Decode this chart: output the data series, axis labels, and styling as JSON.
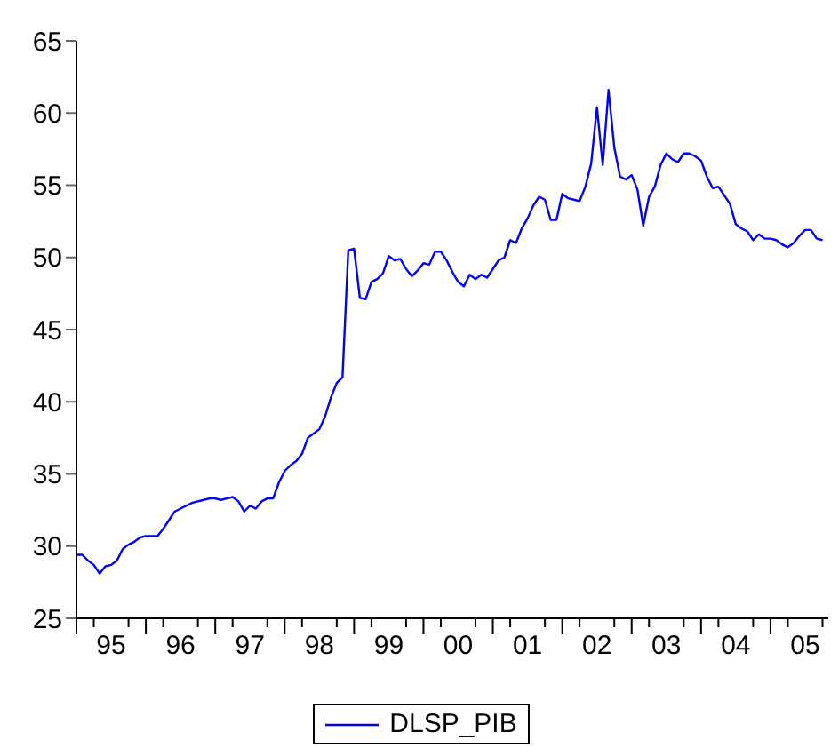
{
  "chart_data": {
    "type": "line",
    "x": [
      "1995-01",
      "1995-02",
      "1995-03",
      "1995-04",
      "1995-05",
      "1995-06",
      "1995-07",
      "1995-08",
      "1995-09",
      "1995-10",
      "1995-11",
      "1995-12",
      "1996-01",
      "1996-02",
      "1996-03",
      "1996-04",
      "1996-05",
      "1996-06",
      "1996-07",
      "1996-08",
      "1996-09",
      "1996-10",
      "1996-11",
      "1996-12",
      "1997-01",
      "1997-02",
      "1997-03",
      "1997-04",
      "1997-05",
      "1997-06",
      "1997-07",
      "1997-08",
      "1997-09",
      "1997-10",
      "1997-11",
      "1997-12",
      "1998-01",
      "1998-02",
      "1998-03",
      "1998-04",
      "1998-05",
      "1998-06",
      "1998-07",
      "1998-08",
      "1998-09",
      "1998-10",
      "1998-11",
      "1998-12",
      "1999-01",
      "1999-02",
      "1999-03",
      "1999-04",
      "1999-05",
      "1999-06",
      "1999-07",
      "1999-08",
      "1999-09",
      "1999-10",
      "1999-11",
      "1999-12",
      "2000-01",
      "2000-02",
      "2000-03",
      "2000-04",
      "2000-05",
      "2000-06",
      "2000-07",
      "2000-08",
      "2000-09",
      "2000-10",
      "2000-11",
      "2000-12",
      "2001-01",
      "2001-02",
      "2001-03",
      "2001-04",
      "2001-05",
      "2001-06",
      "2001-07",
      "2001-08",
      "2001-09",
      "2001-10",
      "2001-11",
      "2001-12",
      "2002-01",
      "2002-02",
      "2002-03",
      "2002-04",
      "2002-05",
      "2002-06",
      "2002-07",
      "2002-08",
      "2002-09",
      "2002-10",
      "2002-11",
      "2002-12",
      "2003-01",
      "2003-02",
      "2003-03",
      "2003-04",
      "2003-05",
      "2003-06",
      "2003-07",
      "2003-08",
      "2003-09",
      "2003-10",
      "2003-11",
      "2003-12",
      "2004-01",
      "2004-02",
      "2004-03",
      "2004-04",
      "2004-05",
      "2004-06",
      "2004-07",
      "2004-08",
      "2004-09",
      "2004-10",
      "2004-11",
      "2004-12",
      "2005-01",
      "2005-02",
      "2005-03",
      "2005-04",
      "2005-05",
      "2005-06",
      "2005-07",
      "2005-08",
      "2005-09",
      "2005-10"
    ],
    "series": [
      {
        "name": "DLSP_PIB",
        "color": "#0000ff",
        "values": [
          29.4,
          29.4,
          29.0,
          28.7,
          28.1,
          28.6,
          28.7,
          29.0,
          29.8,
          30.1,
          30.3,
          30.6,
          30.7,
          30.7,
          30.7,
          31.2,
          31.8,
          32.4,
          32.6,
          32.8,
          33.0,
          33.1,
          33.2,
          33.3,
          33.3,
          33.2,
          33.3,
          33.4,
          33.1,
          32.4,
          32.8,
          32.6,
          33.1,
          33.3,
          33.3,
          34.4,
          35.2,
          35.6,
          35.9,
          36.4,
          37.5,
          37.8,
          38.1,
          39.0,
          40.3,
          41.3,
          41.7,
          50.5,
          50.6,
          47.2,
          47.1,
          48.3,
          48.5,
          48.9,
          50.1,
          49.8,
          49.9,
          49.2,
          48.7,
          49.1,
          49.6,
          49.5,
          50.4,
          50.4,
          49.8,
          49.0,
          48.3,
          48.0,
          48.8,
          48.5,
          48.8,
          48.6,
          49.2,
          49.8,
          50.0,
          51.2,
          51.0,
          52.0,
          52.7,
          53.6,
          54.2,
          54.0,
          52.6,
          52.6,
          54.4,
          54.1,
          54.0,
          53.9,
          54.9,
          56.5,
          60.4,
          56.4,
          61.6,
          57.6,
          55.6,
          55.4,
          55.7,
          54.7,
          52.2,
          54.2,
          54.9,
          56.4,
          57.2,
          56.8,
          56.6,
          57.2,
          57.2,
          57.0,
          56.7,
          55.6,
          54.8,
          54.9,
          54.3,
          53.7,
          52.3,
          52.0,
          51.8,
          51.2,
          51.6,
          51.3,
          51.3,
          51.2,
          50.9,
          50.7,
          51.0,
          51.5,
          51.9,
          51.9,
          51.3,
          51.2
        ]
      }
    ],
    "xlim": [
      "1995-01",
      "2005-11"
    ],
    "xticks": [
      {
        "value": "1995-01",
        "label": null
      },
      {
        "value": "1995-04",
        "label": null
      },
      {
        "value": "1995-07",
        "label": "95"
      },
      {
        "value": "1995-10",
        "label": null
      },
      {
        "value": "1996-01",
        "label": null
      },
      {
        "value": "1996-04",
        "label": null
      },
      {
        "value": "1996-07",
        "label": "96"
      },
      {
        "value": "1996-10",
        "label": null
      },
      {
        "value": "1997-01",
        "label": null
      },
      {
        "value": "1997-04",
        "label": null
      },
      {
        "value": "1997-07",
        "label": "97"
      },
      {
        "value": "1997-10",
        "label": null
      },
      {
        "value": "1998-01",
        "label": null
      },
      {
        "value": "1998-04",
        "label": null
      },
      {
        "value": "1998-07",
        "label": "98"
      },
      {
        "value": "1998-10",
        "label": null
      },
      {
        "value": "1999-01",
        "label": null
      },
      {
        "value": "1999-04",
        "label": null
      },
      {
        "value": "1999-07",
        "label": "99"
      },
      {
        "value": "1999-10",
        "label": null
      },
      {
        "value": "2000-01",
        "label": null
      },
      {
        "value": "2000-04",
        "label": null
      },
      {
        "value": "2000-07",
        "label": "00"
      },
      {
        "value": "2000-10",
        "label": null
      },
      {
        "value": "2001-01",
        "label": null
      },
      {
        "value": "2001-04",
        "label": null
      },
      {
        "value": "2001-07",
        "label": "01"
      },
      {
        "value": "2001-10",
        "label": null
      },
      {
        "value": "2002-01",
        "label": null
      },
      {
        "value": "2002-04",
        "label": null
      },
      {
        "value": "2002-07",
        "label": "02"
      },
      {
        "value": "2002-10",
        "label": null
      },
      {
        "value": "2003-01",
        "label": null
      },
      {
        "value": "2003-04",
        "label": null
      },
      {
        "value": "2003-07",
        "label": "03"
      },
      {
        "value": "2003-10",
        "label": null
      },
      {
        "value": "2004-01",
        "label": null
      },
      {
        "value": "2004-04",
        "label": null
      },
      {
        "value": "2004-07",
        "label": "04"
      },
      {
        "value": "2004-10",
        "label": null
      },
      {
        "value": "2005-01",
        "label": null
      },
      {
        "value": "2005-04",
        "label": null
      },
      {
        "value": "2005-07",
        "label": "05"
      },
      {
        "value": "2005-10",
        "label": null
      }
    ],
    "ylim": [
      25,
      65
    ],
    "yticks": [
      25,
      30,
      35,
      40,
      45,
      50,
      55,
      60,
      65
    ],
    "legend": "bottom",
    "grid": false,
    "marker": "none",
    "line_style": "solid"
  }
}
